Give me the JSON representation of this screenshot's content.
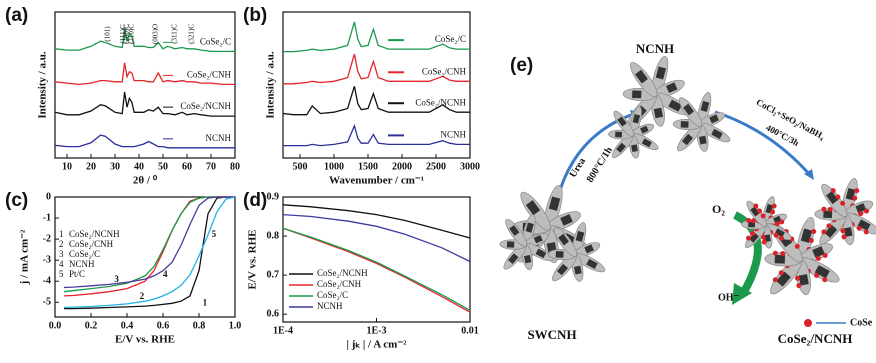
{
  "chart_data": [
    {
      "type": "line",
      "panel_label": "(a)",
      "x_label": "2θ / ⁰",
      "y_label": "Intensity / a.u.",
      "x": [
        5,
        10,
        15,
        20,
        24,
        26,
        30,
        33,
        34,
        35,
        36,
        37,
        38,
        42,
        44,
        46,
        48,
        50,
        52,
        55,
        58,
        60,
        63,
        66,
        70,
        75,
        80
      ],
      "xlim": [
        5,
        80
      ],
      "xticks": [
        10,
        20,
        30,
        40,
        50,
        60,
        70,
        80
      ],
      "ylim": [
        0,
        115
      ],
      "legend": "curve-labels",
      "annotations": [
        "(101)",
        "(111)C",
        "(200)C",
        "(210)C",
        "(003)O",
        "(311)C",
        "(321)C"
      ],
      "series": [
        {
          "name": "CoSe₂/C",
          "color": "#1a9a4a",
          "values": [
            86,
            85,
            85,
            88,
            92,
            91,
            88,
            87,
            102,
            92,
            98,
            96,
            88,
            88,
            87,
            87,
            91,
            86,
            88,
            86,
            87,
            86,
            86,
            85,
            84,
            84,
            84
          ]
        },
        {
          "name": "CoSe₂/CNH",
          "color": "#e8232a",
          "values": [
            60,
            59,
            58,
            59,
            61,
            61,
            60,
            60,
            75,
            64,
            68,
            67,
            61,
            61,
            60,
            60,
            67,
            60,
            61,
            60,
            61,
            60,
            60,
            59,
            59,
            58,
            58
          ]
        },
        {
          "name": "CoSe₂/NCNH",
          "color": "#111111",
          "values": [
            36,
            34,
            34,
            37,
            42,
            41,
            36,
            35,
            52,
            40,
            47,
            44,
            36,
            36,
            38,
            37,
            40,
            35,
            35,
            34,
            36,
            34,
            35,
            34,
            33,
            33,
            33
          ]
        },
        {
          "name": "NCNH",
          "color": "#2b2f9a",
          "values": [
            10,
            9,
            9,
            12,
            18,
            17,
            11,
            9,
            9,
            9,
            9,
            9,
            9,
            11,
            13,
            11,
            9,
            9,
            8,
            8,
            8,
            8,
            8,
            8,
            8,
            8,
            8
          ]
        }
      ]
    },
    {
      "type": "line",
      "panel_label": "(b)",
      "x_label": "Wavenumber / cm⁻¹",
      "y_label": "Intensity / a.u.",
      "x": [
        250,
        400,
        600,
        680,
        800,
        1000,
        1200,
        1300,
        1350,
        1400,
        1500,
        1580,
        1650,
        1800,
        2000,
        2200,
        2400,
        2600,
        2700,
        2800,
        3000
      ],
      "xlim": [
        250,
        3000
      ],
      "xticks": [
        500,
        1000,
        1500,
        2000,
        2500,
        3000
      ],
      "ylim": [
        0,
        118
      ],
      "legend": "line-labels",
      "series": [
        {
          "name": "CoSe₂/C",
          "color": "#1a9a4a",
          "values": [
            86,
            86,
            87,
            88,
            87,
            88,
            91,
            110,
            96,
            90,
            91,
            104,
            91,
            88,
            88,
            88,
            88,
            92,
            89,
            88,
            88
          ]
        },
        {
          "name": "CoSe₂/CNH",
          "color": "#e8232a",
          "values": [
            60,
            60,
            61,
            62,
            61,
            62,
            65,
            84,
            70,
            64,
            65,
            78,
            65,
            62,
            62,
            62,
            62,
            66,
            63,
            62,
            62
          ]
        },
        {
          "name": "CoSe₂/NCNH",
          "color": "#111111",
          "values": [
            36,
            35,
            35,
            42,
            36,
            37,
            40,
            58,
            44,
            39,
            40,
            52,
            40,
            37,
            37,
            37,
            37,
            43,
            39,
            37,
            37
          ]
        },
        {
          "name": "NCNH",
          "color": "#2b2f9a",
          "values": [
            10,
            10,
            10,
            11,
            10,
            11,
            13,
            26,
            16,
            12,
            12,
            19,
            12,
            11,
            11,
            11,
            11,
            14,
            12,
            11,
            11
          ]
        }
      ]
    },
    {
      "type": "line",
      "panel_label": "(c)",
      "x_label": "E/V vs. RHE",
      "y_label": "j / mA cm⁻²",
      "x": [
        0.05,
        0.1,
        0.2,
        0.3,
        0.4,
        0.5,
        0.55,
        0.6,
        0.65,
        0.7,
        0.75,
        0.8,
        0.85,
        0.9,
        0.95,
        1.0
      ],
      "xlim": [
        0,
        1
      ],
      "xticks": [
        {
          "value": 0,
          "label": "0.0"
        },
        0.2,
        0.4,
        0.6,
        0.8,
        {
          "value": 1,
          "label": "1.0"
        }
      ],
      "ylim": [
        -5.7,
        0
      ],
      "yticks": [
        0,
        -1,
        -2,
        -3,
        -4,
        -5
      ],
      "legend": "upper left",
      "series": [
        {
          "tag": "1",
          "name": "CoSe₂/NCNH",
          "color": "#111111",
          "values": [
            -5.3,
            -5.3,
            -5.28,
            -5.25,
            -5.22,
            -5.18,
            -5.15,
            -5.1,
            -5.05,
            -4.95,
            -4.7,
            -3.5,
            -0.8,
            -0.05,
            0,
            0
          ]
        },
        {
          "tag": "2",
          "name": "CoSe₂/CNH",
          "color": "#e8232a",
          "values": [
            -4.7,
            -4.68,
            -4.6,
            -4.5,
            -4.35,
            -4.0,
            -3.5,
            -2.6,
            -1.6,
            -0.8,
            -0.2,
            -0.05,
            0,
            0,
            0,
            0
          ]
        },
        {
          "tag": "3",
          "name": "CoSe₂/C",
          "color": "#1a9a4a",
          "values": [
            -4.5,
            -4.45,
            -4.35,
            -4.25,
            -4.1,
            -3.75,
            -3.3,
            -2.5,
            -1.6,
            -0.8,
            -0.25,
            -0.05,
            0,
            0,
            0,
            0
          ]
        },
        {
          "tag": "4",
          "name": "NCNH",
          "color": "#4b3a9a",
          "values": [
            -4.3,
            -4.28,
            -4.22,
            -4.15,
            -4.05,
            -3.9,
            -3.75,
            -3.5,
            -3.1,
            -2.3,
            -1.3,
            -0.4,
            -0.05,
            0,
            0,
            0
          ]
        },
        {
          "tag": "5",
          "name": "Pt/C",
          "color": "#1eb4e6",
          "values": [
            -5.25,
            -5.23,
            -5.2,
            -5.15,
            -5.08,
            -4.95,
            -4.85,
            -4.7,
            -4.5,
            -4.2,
            -3.7,
            -2.8,
            -1.8,
            -0.7,
            -0.1,
            0
          ]
        }
      ]
    },
    {
      "type": "line",
      "panel_label": "(d)",
      "x_label": "| jₖ | / A cm⁻²",
      "y_label": "E/V vs. RHE",
      "x": [
        0.0001,
        0.0002,
        0.0005,
        0.001,
        0.002,
        0.005,
        0.01
      ],
      "xscale": "log",
      "xlim": [
        0.0001,
        0.01
      ],
      "xticks": [
        {
          "value": 0.0001,
          "label": "1E-4"
        },
        {
          "value": 0.001,
          "label": "1E-3"
        },
        0.01
      ],
      "ylim": [
        0.58,
        0.9
      ],
      "yticks": [
        0.6,
        0.7,
        0.8,
        0.9
      ],
      "legend": "lower left",
      "series": [
        {
          "name": "CoSe₂/NCNH",
          "color": "#111111",
          "values": [
            0.88,
            0.875,
            0.865,
            0.855,
            0.84,
            0.815,
            0.795
          ]
        },
        {
          "name": "CoSe₂/CNH",
          "color": "#e8232a",
          "values": [
            0.82,
            0.795,
            0.76,
            0.73,
            0.695,
            0.645,
            0.605
          ]
        },
        {
          "name": "CoSe₂/C",
          "color": "#1a9a4a",
          "values": [
            0.82,
            0.797,
            0.763,
            0.733,
            0.698,
            0.65,
            0.61
          ]
        },
        {
          "name": "NCNH",
          "color": "#3a3aa0",
          "values": [
            0.855,
            0.85,
            0.838,
            0.825,
            0.805,
            0.77,
            0.735
          ]
        }
      ]
    }
  ],
  "diagram": {
    "panel_label": "(e)",
    "top_label": "NCNH",
    "start_label": "SWCNH",
    "end_label": "CoSe₂/NCNH",
    "step1": [
      "Urea",
      "800°C/1h"
    ],
    "step2": [
      "CoCl₂+SeO₂/NaBH₄",
      "400°C/3h"
    ],
    "reactant": "O₂",
    "product": "OH⁻",
    "legend_label": "CoSe"
  }
}
